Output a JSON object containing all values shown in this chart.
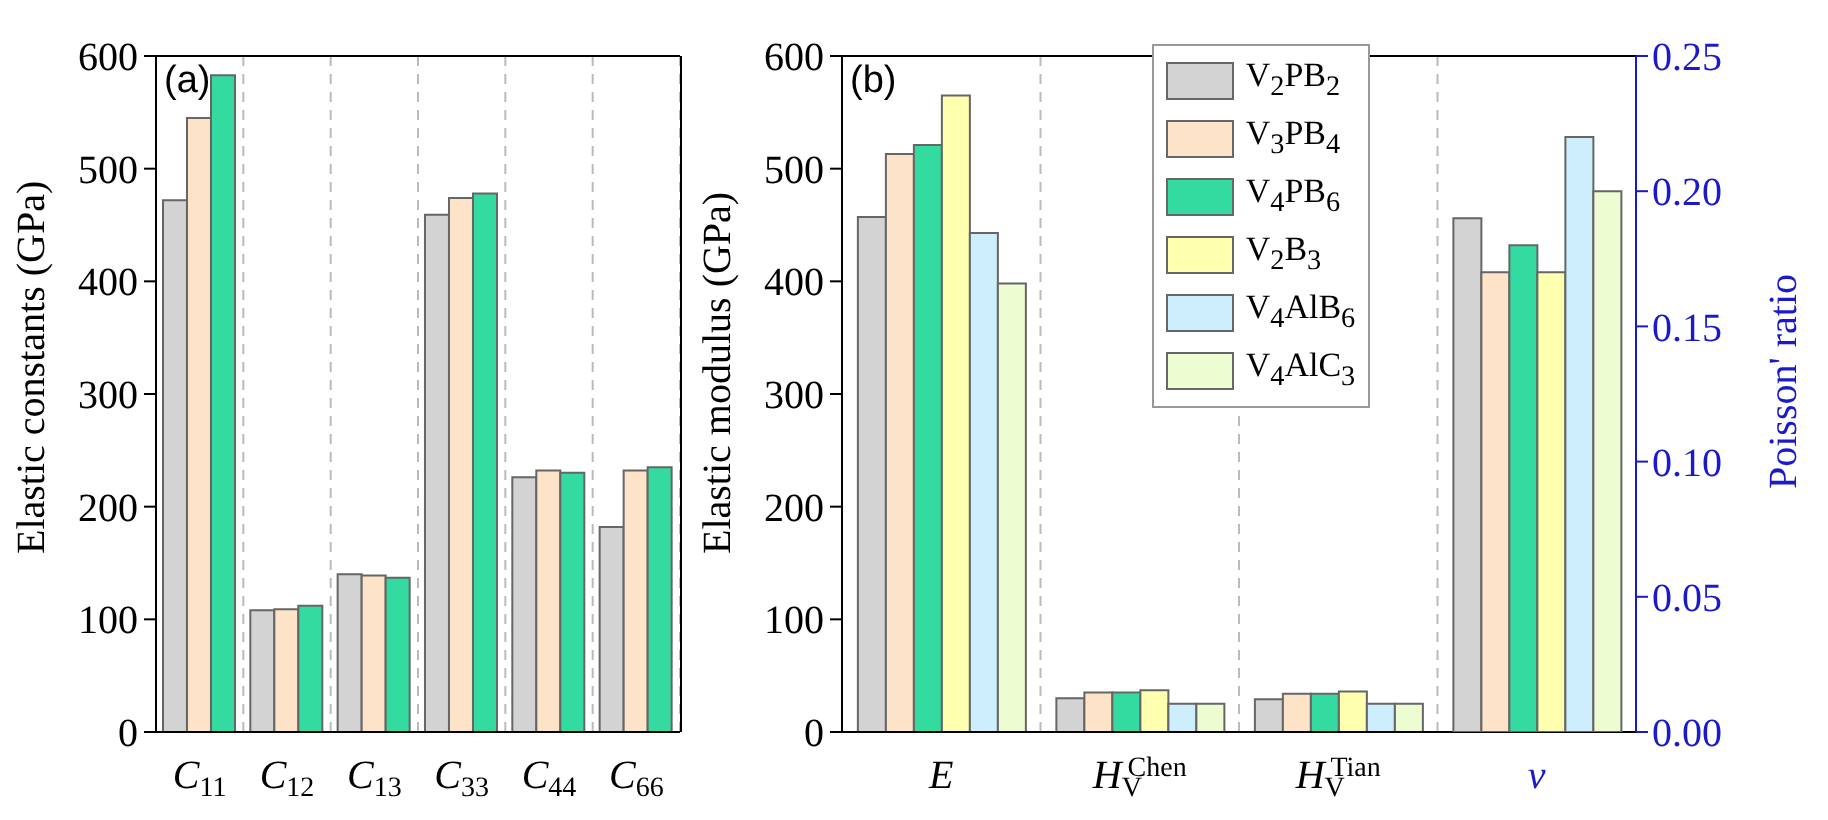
{
  "chart_data": [
    {
      "type": "bar",
      "ylabel": "Elastic constants (GPa)",
      "categories": [
        "C$_{11}$",
        "C$_{12}$",
        "C$_{13}$",
        "C$_{33}$",
        "C$_{44}$",
        "C$_{66}$"
      ],
      "series": [
        {
          "color": "#d3d3d3",
          "values": [
            472,
            108,
            140,
            459,
            226,
            182
          ]
        },
        {
          "color": "#fde3c8",
          "values": [
            545,
            109,
            139,
            474,
            232,
            232
          ]
        },
        {
          "color": "#34dba0",
          "values": [
            583,
            112,
            137,
            478,
            230,
            235
          ]
        }
      ],
      "ylim": [
        0,
        600
      ],
      "yticks": [
        0,
        100,
        200,
        300,
        400,
        500,
        600
      ],
      "grid": "x",
      "legend": false,
      "annotations": [
        "(a)"
      ]
    },
    {
      "type": "bar",
      "ylabel": "Elastic modulus (GPa)",
      "y2label": "Poisson' ratio",
      "categories": [
        "E",
        "H$_{V}$$^{Chen}$",
        "H$_{V}$$^{Tian}$",
        "ν"
      ],
      "series": [
        {
          "name": "V$_{2}$PB$_{2}$",
          "color": "#d3d3d3",
          "values": [
            457,
            30,
            29,
            null
          ]
        },
        {
          "name": "V$_{3}$PB$_{4}$",
          "color": "#fde3c8",
          "values": [
            513,
            35,
            34,
            null
          ]
        },
        {
          "name": "V$_{4}$PB$_{6}$",
          "color": "#34dba0",
          "values": [
            521,
            35,
            34,
            null
          ]
        },
        {
          "name": "V$_{2}$B$_{3}$",
          "color": "#ffffb0",
          "values": [
            565,
            37,
            36,
            null
          ]
        },
        {
          "name": "V$_{4}$AlB$_{6}$",
          "color": "#cdeefc",
          "values": [
            443,
            25,
            25,
            null
          ]
        },
        {
          "name": "V$_{4}$AlC$_{3}$",
          "color": "#eefcd2",
          "values": [
            398,
            25,
            25,
            null
          ]
        },
        {
          "color": "#d3d3d3",
          "axis": "y2",
          "values": [
            null,
            null,
            null,
            0.19
          ]
        },
        {
          "color": "#fde3c8",
          "axis": "y2",
          "values": [
            null,
            null,
            null,
            0.17
          ]
        },
        {
          "color": "#34dba0",
          "axis": "y2",
          "values": [
            null,
            null,
            null,
            0.18
          ]
        },
        {
          "color": "#ffffb0",
          "axis": "y2",
          "values": [
            null,
            null,
            null,
            0.17
          ]
        },
        {
          "color": "#cdeefc",
          "axis": "y2",
          "values": [
            null,
            null,
            null,
            0.22
          ]
        },
        {
          "color": "#eefcd2",
          "axis": "y2",
          "values": [
            null,
            null,
            null,
            0.2
          ]
        }
      ],
      "ylim": [
        0,
        600
      ],
      "yticks": [
        0,
        100,
        200,
        300,
        400,
        500,
        600
      ],
      "y2lim": [
        0,
        0.25
      ],
      "y2ticks": [
        {
          "value": 0,
          "label": "0.00"
        },
        {
          "value": 0.05,
          "label": "0.05"
        },
        {
          "value": 0.1,
          "label": "0.10"
        },
        {
          "value": 0.15,
          "label": "0.15"
        },
        {
          "value": 0.2,
          "label": "0.20"
        },
        {
          "value": 0.25,
          "label": "0.25"
        }
      ],
      "grid": "x",
      "legend": "top",
      "annotations": [
        "(b)"
      ]
    }
  ]
}
